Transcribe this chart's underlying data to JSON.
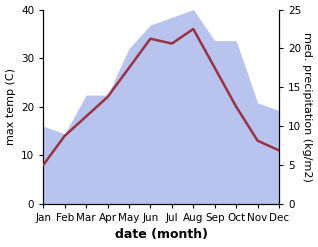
{
  "months": [
    "Jan",
    "Feb",
    "Mar",
    "Apr",
    "May",
    "Jun",
    "Jul",
    "Aug",
    "Sep",
    "Oct",
    "Nov",
    "Dec"
  ],
  "x": [
    0,
    1,
    2,
    3,
    4,
    5,
    6,
    7,
    8,
    9,
    10,
    11
  ],
  "temperature": [
    8,
    14,
    18,
    22,
    28,
    34,
    33,
    36,
    28,
    20,
    13,
    11
  ],
  "precipitation": [
    10,
    9,
    14,
    14,
    20,
    23,
    24,
    25,
    21,
    21,
    13,
    12
  ],
  "temp_color": "#993344",
  "precip_color": "#b8c4ee",
  "temp_ylim": [
    0,
    40
  ],
  "precip_ylim": [
    0,
    25
  ],
  "xlabel": "date (month)",
  "ylabel_left": "max temp (C)",
  "ylabel_right": "med. precipitation (kg/m2)",
  "background_color": "#ffffff",
  "temp_linewidth": 1.8,
  "xlabel_fontsize": 9,
  "ylabel_fontsize": 8,
  "tick_fontsize": 7.5,
  "left_yticks": [
    0,
    10,
    20,
    30,
    40
  ],
  "right_yticks": [
    0,
    5,
    10,
    15,
    20,
    25
  ]
}
